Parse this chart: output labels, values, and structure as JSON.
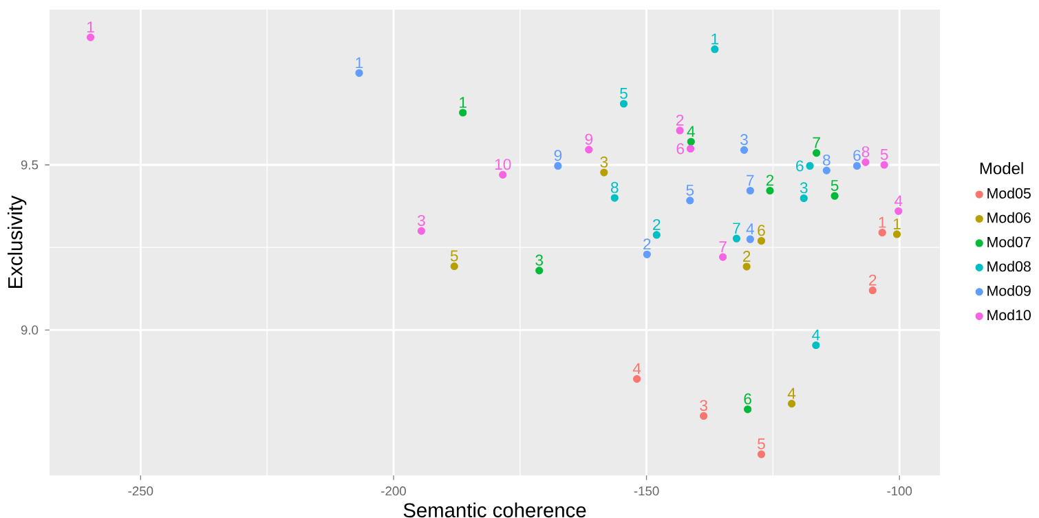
{
  "chart_data": {
    "type": "scatter",
    "xlabel": "Semantic coherence",
    "ylabel": "Exclusivity",
    "legend_title": "Model",
    "legend": "right",
    "grid": true,
    "xlim": [
      -268,
      -92
    ],
    "ylim": [
      8.56,
      9.97
    ],
    "xticks": [
      -250,
      -200,
      -150,
      -100
    ],
    "yticks": [
      {
        "value": 9,
        "label": "9.0"
      },
      {
        "value": 9.5,
        "label": "9.5"
      }
    ],
    "series": [
      {
        "name": "Mod05",
        "color": "#F8766D",
        "x": [
          -103.4,
          -105.3,
          -138.7,
          -151.9,
          -127.3
        ],
        "values": [
          9.295,
          9.12,
          8.74,
          8.852,
          8.624
        ]
      },
      {
        "name": "Mod06",
        "color": "#B79F00",
        "x": [
          -100.5,
          -130.2,
          -158.4,
          -121.3,
          -188.0,
          -127.3
        ],
        "values": [
          9.29,
          9.192,
          9.477,
          8.777,
          9.193,
          9.27
        ]
      },
      {
        "name": "Mod07",
        "color": "#00BA38",
        "x": [
          -186.3,
          -125.6,
          -171.2,
          -141.2,
          -112.8,
          -130.0,
          -116.4
        ],
        "values": [
          9.658,
          9.422,
          9.18,
          9.57,
          9.406,
          8.76,
          9.536
        ]
      },
      {
        "name": "Mod08",
        "color": "#00BFC4",
        "x": [
          -136.5,
          -148.0,
          -118.9,
          -116.5,
          -154.5,
          -117.7,
          -132.2,
          -156.3
        ],
        "values": [
          9.85,
          9.288,
          9.399,
          8.954,
          9.685,
          9.497,
          9.277,
          9.4
        ]
      },
      {
        "name": "Mod09",
        "color": "#619CFF",
        "x": [
          -206.8,
          -149.9,
          -130.7,
          -129.5,
          -141.4,
          -108.4,
          -129.5,
          -114.4,
          -167.5
        ],
        "values": [
          9.778,
          9.229,
          9.545,
          9.275,
          9.392,
          9.497,
          9.422,
          9.483,
          9.497
        ]
      },
      {
        "name": "Mod10",
        "color": "#F564E3",
        "x": [
          -259.9,
          -143.4,
          -194.5,
          -100.2,
          -103.0,
          -141.3,
          -134.9,
          -106.7,
          -161.4,
          -178.4
        ],
        "values": [
          9.886,
          9.604,
          9.3,
          9.36,
          9.5,
          9.549,
          9.221,
          9.508,
          9.546,
          9.47
        ]
      }
    ],
    "annotations": [
      {
        "text": "1",
        "x": -103.4,
        "y": 9.295
      },
      {
        "text": "2",
        "x": -105.3,
        "y": 9.12
      },
      {
        "text": "3",
        "x": -138.7,
        "y": 8.74
      },
      {
        "text": "4",
        "x": -151.9,
        "y": 8.852
      },
      {
        "text": "5",
        "x": -127.3,
        "y": 8.624
      },
      {
        "text": "1",
        "x": -100.5,
        "y": 9.29
      },
      {
        "text": "2",
        "x": -130.2,
        "y": 9.192
      },
      {
        "text": "3",
        "x": -158.4,
        "y": 9.477
      },
      {
        "text": "4",
        "x": -121.3,
        "y": 8.777
      },
      {
        "text": "5",
        "x": -188.0,
        "y": 9.193
      },
      {
        "text": "6",
        "x": -127.3,
        "y": 9.27
      },
      {
        "text": "1",
        "x": -186.3,
        "y": 9.658
      },
      {
        "text": "2",
        "x": -125.6,
        "y": 9.422
      },
      {
        "text": "3",
        "x": -171.2,
        "y": 9.18
      },
      {
        "text": "4",
        "x": -141.2,
        "y": 9.57
      },
      {
        "text": "5",
        "x": -112.8,
        "y": 9.406
      },
      {
        "text": "6",
        "x": -130.0,
        "y": 8.76
      },
      {
        "text": "7",
        "x": -116.4,
        "y": 9.536
      },
      {
        "text": "1",
        "x": -136.5,
        "y": 9.85
      },
      {
        "text": "2",
        "x": -148.0,
        "y": 9.288
      },
      {
        "text": "3",
        "x": -118.9,
        "y": 9.399
      },
      {
        "text": "4",
        "x": -116.5,
        "y": 8.954
      },
      {
        "text": "5",
        "x": -154.5,
        "y": 9.685
      },
      {
        "text": "6",
        "x": -117.7,
        "y": 9.497
      },
      {
        "text": "7",
        "x": -132.2,
        "y": 9.277
      },
      {
        "text": "8",
        "x": -156.3,
        "y": 9.4
      },
      {
        "text": "1",
        "x": -206.8,
        "y": 9.778
      },
      {
        "text": "2",
        "x": -149.9,
        "y": 9.229
      },
      {
        "text": "3",
        "x": -130.7,
        "y": 9.545
      },
      {
        "text": "4",
        "x": -129.5,
        "y": 9.275
      },
      {
        "text": "5",
        "x": -141.4,
        "y": 9.392
      },
      {
        "text": "6",
        "x": -108.4,
        "y": 9.497
      },
      {
        "text": "7",
        "x": -129.5,
        "y": 9.422
      },
      {
        "text": "8",
        "x": -114.4,
        "y": 9.483
      },
      {
        "text": "9",
        "x": -167.5,
        "y": 9.497
      },
      {
        "text": "1",
        "x": -259.9,
        "y": 9.886
      },
      {
        "text": "2",
        "x": -143.4,
        "y": 9.604
      },
      {
        "text": "3",
        "x": -194.5,
        "y": 9.3
      },
      {
        "text": "4",
        "x": -100.2,
        "y": 9.36
      },
      {
        "text": "5",
        "x": -103.0,
        "y": 9.5
      },
      {
        "text": "6",
        "x": -141.3,
        "y": 9.549
      },
      {
        "text": "7",
        "x": -134.9,
        "y": 9.221
      },
      {
        "text": "8",
        "x": -106.7,
        "y": 9.508
      },
      {
        "text": "9",
        "x": -161.4,
        "y": 9.546
      },
      {
        "text": "10",
        "x": -178.4,
        "y": 9.47
      }
    ]
  }
}
